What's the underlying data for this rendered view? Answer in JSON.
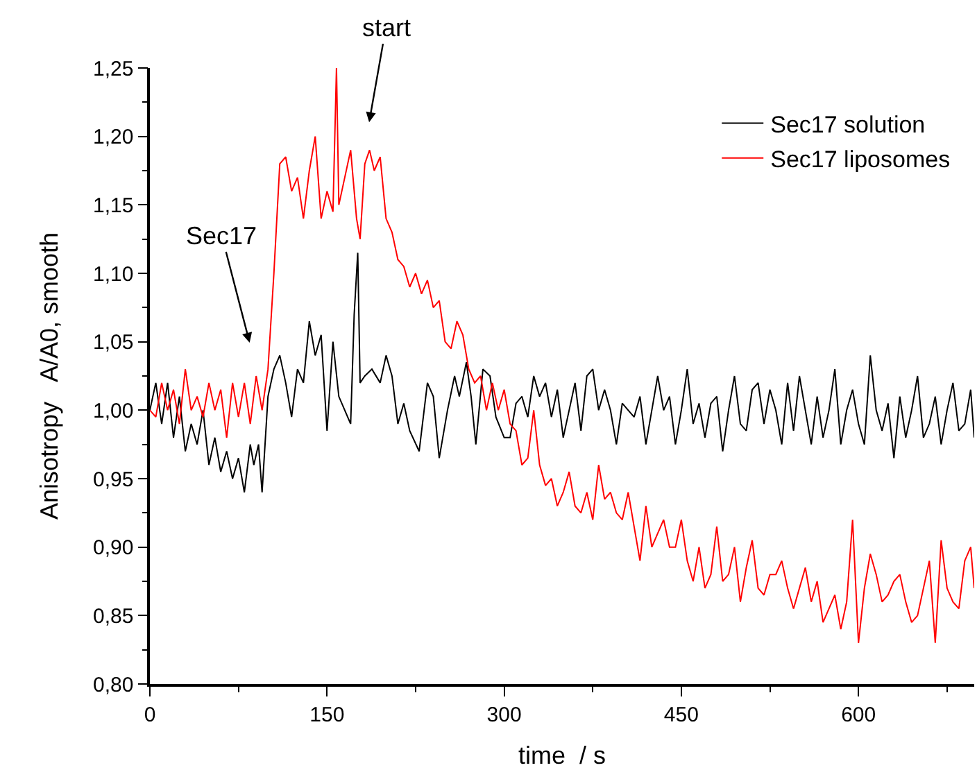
{
  "chart_data": {
    "type": "line",
    "xlabel": "time  / s",
    "ylabel": "Anisotropy   A/A0, smooth",
    "xlim": [
      0,
      698
    ],
    "xticks": [
      0,
      150,
      300,
      450,
      600
    ],
    "ylim": [
      0.8,
      1.25
    ],
    "yticks": [
      {
        "value": 0.8,
        "label": "0,80"
      },
      {
        "value": 0.85,
        "label": "0,85"
      },
      {
        "value": 0.9,
        "label": "0,90"
      },
      {
        "value": 0.95,
        "label": "0,95"
      },
      {
        "value": 1.0,
        "label": "1,00"
      },
      {
        "value": 1.05,
        "label": "1,05"
      },
      {
        "value": 1.1,
        "label": "1,10"
      },
      {
        "value": 1.15,
        "label": "1,15"
      },
      {
        "value": 1.2,
        "label": "1,20"
      },
      {
        "value": 1.25,
        "label": "1,25"
      }
    ],
    "legend": "top right",
    "marker": "none",
    "line_style": "solid",
    "annotations": [
      "start",
      "Sec17"
    ],
    "series": [
      {
        "name": "Sec17 solution",
        "color": "#000000",
        "x": [
          0,
          5,
          10,
          15,
          20,
          25,
          30,
          35,
          40,
          45,
          50,
          55,
          60,
          65,
          70,
          75,
          80,
          85,
          88,
          92,
          95,
          100,
          105,
          110,
          115,
          120,
          125,
          130,
          135,
          140,
          145,
          150,
          155,
          160,
          165,
          170,
          173,
          176,
          178,
          182,
          188,
          195,
          200,
          205,
          210,
          215,
          220,
          228,
          235,
          240,
          245,
          252,
          258,
          262,
          268,
          272,
          276,
          282,
          288,
          293,
          300,
          305,
          310,
          315,
          320,
          325,
          330,
          335,
          340,
          345,
          350,
          355,
          360,
          365,
          370,
          375,
          380,
          385,
          390,
          395,
          400,
          405,
          410,
          415,
          420,
          425,
          430,
          435,
          440,
          445,
          450,
          455,
          460,
          465,
          470,
          475,
          480,
          485,
          490,
          495,
          500,
          505,
          510,
          515,
          520,
          525,
          530,
          535,
          540,
          545,
          550,
          555,
          560,
          565,
          570,
          575,
          580,
          585,
          590,
          595,
          600,
          605,
          610,
          615,
          620,
          625,
          630,
          635,
          640,
          645,
          650,
          655,
          660,
          665,
          670,
          675,
          680,
          685,
          690,
          695,
          698
        ],
        "values": [
          1.0,
          1.02,
          0.99,
          1.02,
          0.98,
          1.01,
          0.97,
          0.99,
          0.975,
          1.0,
          0.96,
          0.98,
          0.955,
          0.97,
          0.95,
          0.965,
          0.94,
          0.975,
          0.96,
          0.975,
          0.94,
          1.01,
          1.03,
          1.04,
          1.02,
          0.995,
          1.03,
          1.02,
          1.065,
          1.04,
          1.055,
          0.985,
          1.05,
          1.01,
          1.0,
          0.99,
          1.07,
          1.115,
          1.02,
          1.025,
          1.03,
          1.02,
          1.04,
          1.025,
          0.99,
          1.005,
          0.985,
          0.97,
          1.02,
          1.01,
          0.965,
          1.0,
          1.025,
          1.01,
          1.035,
          1.01,
          0.975,
          1.03,
          1.025,
          0.995,
          0.98,
          0.98,
          1.005,
          1.01,
          0.995,
          1.025,
          1.01,
          1.02,
          0.995,
          1.015,
          0.98,
          1.0,
          1.02,
          0.985,
          1.025,
          1.03,
          1.0,
          1.015,
          1.0,
          0.975,
          1.005,
          1.0,
          0.995,
          1.01,
          0.975,
          1.0,
          1.025,
          1.0,
          1.01,
          0.975,
          1.0,
          1.03,
          0.99,
          1.005,
          0.98,
          1.005,
          1.01,
          0.97,
          1.0,
          1.025,
          0.99,
          0.985,
          1.015,
          1.02,
          0.99,
          1.015,
          1.0,
          0.975,
          1.02,
          0.985,
          1.025,
          1.0,
          0.975,
          1.01,
          0.98,
          1.0,
          1.03,
          0.975,
          1.0,
          1.015,
          0.99,
          0.975,
          1.04,
          1.0,
          0.985,
          1.005,
          0.965,
          1.01,
          0.98,
          1.0,
          1.025,
          0.98,
          0.99,
          1.01,
          0.975,
          1.0,
          1.02,
          0.985,
          0.99,
          1.015,
          0.98
        ]
      },
      {
        "name": "Sec17 liposomes",
        "color": "#ff0000",
        "x": [
          0,
          5,
          10,
          15,
          20,
          25,
          30,
          35,
          40,
          45,
          50,
          55,
          60,
          65,
          70,
          75,
          80,
          85,
          90,
          95,
          100,
          105,
          110,
          115,
          120,
          125,
          130,
          135,
          140,
          145,
          150,
          155,
          158,
          160,
          165,
          170,
          175,
          178,
          182,
          186,
          190,
          195,
          200,
          205,
          210,
          215,
          220,
          225,
          230,
          235,
          240,
          245,
          250,
          255,
          260,
          265,
          270,
          275,
          280,
          285,
          290,
          295,
          300,
          305,
          310,
          315,
          320,
          325,
          330,
          335,
          340,
          345,
          350,
          355,
          360,
          365,
          370,
          375,
          380,
          385,
          390,
          395,
          400,
          405,
          410,
          415,
          420,
          425,
          430,
          435,
          440,
          445,
          450,
          455,
          460,
          465,
          470,
          475,
          480,
          485,
          490,
          495,
          500,
          505,
          510,
          515,
          520,
          525,
          530,
          535,
          540,
          545,
          550,
          555,
          560,
          565,
          570,
          575,
          580,
          585,
          590,
          595,
          600,
          605,
          610,
          615,
          620,
          625,
          630,
          635,
          640,
          645,
          650,
          655,
          660,
          665,
          670,
          675,
          680,
          685,
          690,
          695,
          698
        ],
        "values": [
          1.0,
          0.995,
          1.02,
          1.0,
          1.015,
          0.99,
          1.03,
          1.0,
          1.01,
          0.995,
          1.02,
          1.0,
          1.015,
          0.98,
          1.02,
          0.995,
          1.02,
          0.99,
          1.025,
          1.0,
          1.03,
          1.1,
          1.18,
          1.185,
          1.16,
          1.17,
          1.14,
          1.175,
          1.2,
          1.14,
          1.16,
          1.145,
          1.25,
          1.15,
          1.17,
          1.19,
          1.14,
          1.125,
          1.18,
          1.19,
          1.175,
          1.185,
          1.14,
          1.13,
          1.11,
          1.105,
          1.09,
          1.1,
          1.085,
          1.095,
          1.075,
          1.08,
          1.05,
          1.045,
          1.065,
          1.055,
          1.03,
          1.02,
          1.025,
          1.0,
          1.02,
          1.0,
          1.015,
          0.99,
          0.985,
          0.96,
          0.965,
          1.0,
          0.96,
          0.945,
          0.95,
          0.93,
          0.94,
          0.955,
          0.93,
          0.925,
          0.94,
          0.92,
          0.96,
          0.935,
          0.94,
          0.925,
          0.92,
          0.94,
          0.915,
          0.89,
          0.93,
          0.9,
          0.91,
          0.92,
          0.9,
          0.9,
          0.92,
          0.89,
          0.875,
          0.9,
          0.87,
          0.88,
          0.915,
          0.875,
          0.88,
          0.9,
          0.86,
          0.885,
          0.905,
          0.87,
          0.865,
          0.88,
          0.88,
          0.89,
          0.87,
          0.855,
          0.87,
          0.885,
          0.86,
          0.875,
          0.845,
          0.855,
          0.865,
          0.84,
          0.86,
          0.92,
          0.83,
          0.87,
          0.895,
          0.88,
          0.86,
          0.865,
          0.875,
          0.88,
          0.86,
          0.845,
          0.85,
          0.87,
          0.89,
          0.83,
          0.905,
          0.87,
          0.86,
          0.855,
          0.89,
          0.9,
          0.87
        ]
      }
    ]
  }
}
